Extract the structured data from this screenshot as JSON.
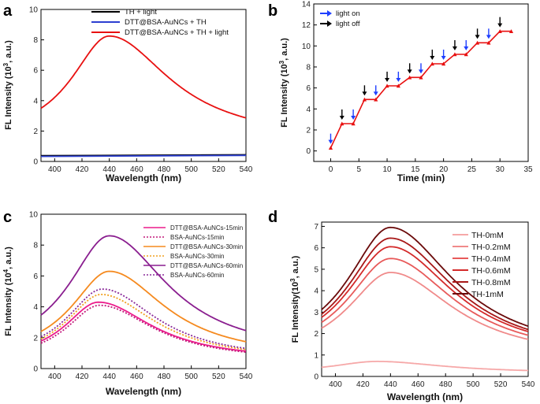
{
  "chart_data": [
    {
      "panel": "a",
      "type": "line",
      "xlabel": "Wavelength (nm)",
      "ylabel": "FL Intensity (10",
      "ylabel_sup": "3",
      "ylabel_tail": ", a.u.)",
      "xlim": [
        390,
        540
      ],
      "ylim": [
        0,
        10
      ],
      "xticks": [
        400,
        420,
        440,
        460,
        480,
        500,
        520,
        540
      ],
      "yticks": [
        0,
        2,
        4,
        6,
        8,
        10
      ],
      "series": [
        {
          "name": "TH + light",
          "color": "#000000",
          "x": [
            390,
            540
          ],
          "y": [
            0.38,
            0.44
          ]
        },
        {
          "name": "DTT@BSA-AuNCs + TH",
          "color": "#2c3fd1",
          "x": [
            390,
            540
          ],
          "y": [
            0.33,
            0.4
          ]
        },
        {
          "name": "DTT@BSA-AuNCs + TH + light",
          "color": "#e81010",
          "peak": 440,
          "wl": 34,
          "wr": 54,
          "base": 1.3,
          "amp": 6.95
        }
      ]
    },
    {
      "panel": "b",
      "type": "line",
      "xlabel": "Time (min)",
      "ylabel": "FL Intensity (10",
      "ylabel_sup": "3",
      "ylabel_tail": ", a.u.)",
      "xlim": [
        -3,
        35
      ],
      "ylim": [
        -1,
        14
      ],
      "xticks": [
        0,
        5,
        10,
        15,
        20,
        25,
        30,
        35
      ],
      "yticks": [
        0,
        2,
        4,
        6,
        8,
        10,
        12,
        14
      ],
      "legend": [
        {
          "name": "light on",
          "color": "#1f3fff"
        },
        {
          "name": "light off",
          "color": "#000000"
        }
      ],
      "series": [
        {
          "name": "FL intensity",
          "color": "#e81010",
          "x": [
            0,
            2,
            4,
            6,
            8,
            10,
            12,
            14,
            16,
            18,
            20,
            22,
            24,
            26,
            28,
            30,
            32
          ],
          "y": [
            0.3,
            2.6,
            2.6,
            4.9,
            4.9,
            6.2,
            6.2,
            7.0,
            7.0,
            8.3,
            8.3,
            9.2,
            9.2,
            10.3,
            10.3,
            11.4,
            11.4
          ]
        }
      ],
      "arrows_on": [
        0,
        4,
        8,
        12,
        16,
        20,
        24,
        28
      ],
      "arrows_off": [
        2,
        6,
        10,
        14,
        18,
        22,
        26,
        30
      ]
    },
    {
      "panel": "c",
      "type": "line",
      "xlabel": "Wavelength (nm)",
      "ylabel": "FL Intensity (10",
      "ylabel_sup": "4",
      "ylabel_tail": ", a.u.)",
      "xlim": [
        390,
        540
      ],
      "ylim": [
        0,
        10
      ],
      "xticks": [
        400,
        420,
        440,
        460,
        480,
        500,
        520,
        540
      ],
      "yticks": [
        0,
        2,
        4,
        6,
        8,
        10
      ],
      "series": [
        {
          "name": "DTT@BSA-AuNCs-15min",
          "color": "#ec1c8c",
          "dash": false,
          "peak": 432,
          "wl": 30,
          "wr": 48,
          "base": 0.5,
          "amp": 3.8
        },
        {
          "name": "BSA-AuNCs-15min",
          "color": "#c2187a",
          "dash": true,
          "peak": 433,
          "wl": 30,
          "wr": 48,
          "base": 0.45,
          "amp": 3.65
        },
        {
          "name": "DTT@BSA-AuNCs-30min",
          "color": "#f58a1f",
          "dash": false,
          "peak": 440,
          "wl": 34,
          "wr": 50,
          "base": 0.6,
          "amp": 5.7
        },
        {
          "name": "BSA-AuNCs-30min",
          "color": "#f0a020",
          "dash": true,
          "peak": 434,
          "wl": 31,
          "wr": 48,
          "base": 0.5,
          "amp": 4.3
        },
        {
          "name": "DTT@BSA-AuNCs-60min",
          "color": "#8a1e8f",
          "dash": false,
          "peak": 440,
          "wl": 36,
          "wr": 52,
          "base": 0.8,
          "amp": 7.8
        },
        {
          "name": "BSA-AuNCs-60min",
          "color": "#8a2a9a",
          "dash": true,
          "peak": 435,
          "wl": 32,
          "wr": 48,
          "base": 0.5,
          "amp": 4.65
        }
      ]
    },
    {
      "panel": "d",
      "type": "line",
      "xlabel": "Wavelength (nm)",
      "ylabel": "FL Intensity(10",
      "ylabel_sup": "3",
      "ylabel_tail": ", a.u.)",
      "xlim": [
        390,
        540
      ],
      "ylim": [
        0,
        7.2
      ],
      "xticks": [
        400,
        420,
        440,
        460,
        480,
        500,
        520,
        540
      ],
      "yticks": [
        0,
        1,
        2,
        3,
        4,
        5,
        6,
        7
      ],
      "series": [
        {
          "name": "TH-0mM",
          "color": "#f6a8a8",
          "peak": 430,
          "wl": 40,
          "wr": 60,
          "base": 0.15,
          "amp": 0.55
        },
        {
          "name": "TH-0.2mM",
          "color": "#f08a8a",
          "peak": 440,
          "wl": 38,
          "wr": 56,
          "base": 0.75,
          "amp": 4.1
        },
        {
          "name": "TH-0.4mM",
          "color": "#e85a5a",
          "peak": 440,
          "wl": 38,
          "wr": 56,
          "base": 0.8,
          "amp": 4.7
        },
        {
          "name": "TH-0.6mM",
          "color": "#d42a2a",
          "peak": 440,
          "wl": 38,
          "wr": 56,
          "base": 0.85,
          "amp": 5.2
        },
        {
          "name": "TH-0.8mM",
          "color": "#a81818",
          "peak": 440,
          "wl": 38,
          "wr": 56,
          "base": 0.85,
          "amp": 5.6
        },
        {
          "name": "TH-1mM",
          "color": "#6a0a0a",
          "peak": 440,
          "wl": 38,
          "wr": 56,
          "base": 0.9,
          "amp": 6.05
        }
      ]
    }
  ]
}
